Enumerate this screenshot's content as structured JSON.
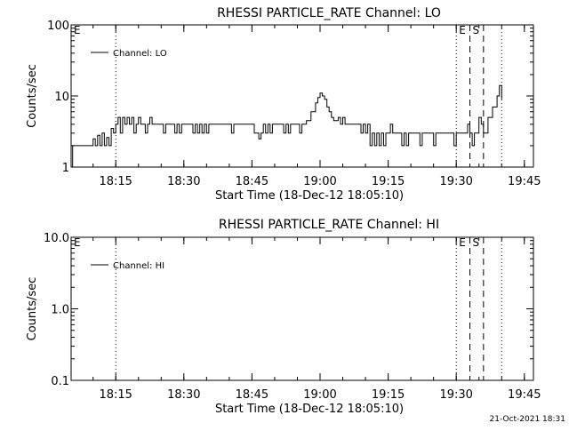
{
  "chart_data": [
    {
      "type": "line",
      "title": "RHESSI PARTICLE_RATE Channel: LO",
      "xlabel": "Start Time (18-Dec-12 18:05:10)",
      "ylabel": "Counts/sec",
      "yscale": "log",
      "ylim": [
        1,
        100
      ],
      "y_ticks": [
        1,
        10,
        100
      ],
      "y_tick_labels": [
        "1",
        "10",
        "100"
      ],
      "x_ticks": [
        "18:15",
        "18:30",
        "18:45",
        "19:00",
        "19:15",
        "19:30",
        "19:45"
      ],
      "legend": {
        "entries": [
          "Channel: LO"
        ],
        "position": "top-left"
      },
      "grid": false,
      "markers": [
        {
          "time": "18:05:10",
          "style": "dotted",
          "label": "E"
        },
        {
          "time": "18:15:00",
          "style": "dotted",
          "label": ""
        },
        {
          "time": "19:30:00",
          "style": "dotted",
          "label": "E"
        },
        {
          "time": "19:33:00",
          "style": "dashed",
          "label": "S"
        },
        {
          "time": "19:36:00",
          "style": "dashed",
          "label": ""
        },
        {
          "time": "19:40:00",
          "style": "dotted",
          "label": ""
        }
      ],
      "series": [
        {
          "name": "Channel: LO",
          "points": [
            [
              "18:05:10",
              1.0
            ],
            [
              "18:05:30",
              2.0
            ],
            [
              "18:07:00",
              2.0
            ],
            [
              "18:09:00",
              2.0
            ],
            [
              "18:10:00",
              2.5
            ],
            [
              "18:10:30",
              2.0
            ],
            [
              "18:11:00",
              2.8
            ],
            [
              "18:11:30",
              2.0
            ],
            [
              "18:12:00",
              3.0
            ],
            [
              "18:12:30",
              2.0
            ],
            [
              "18:13:00",
              2.6
            ],
            [
              "18:13:30",
              2.0
            ],
            [
              "18:14:00",
              3.5
            ],
            [
              "18:14:30",
              3.0
            ],
            [
              "18:15:00",
              4.0
            ],
            [
              "18:15:30",
              5.0
            ],
            [
              "18:16:00",
              3.0
            ],
            [
              "18:16:30",
              5.0
            ],
            [
              "18:17:00",
              4.0
            ],
            [
              "18:17:30",
              5.0
            ],
            [
              "18:18:00",
              4.0
            ],
            [
              "18:18:30",
              5.0
            ],
            [
              "18:19:00",
              3.0
            ],
            [
              "18:19:30",
              4.0
            ],
            [
              "18:20:00",
              5.0
            ],
            [
              "18:20:30",
              4.0
            ],
            [
              "18:21:00",
              4.0
            ],
            [
              "18:21:30",
              3.0
            ],
            [
              "18:22:00",
              4.0
            ],
            [
              "18:22:30",
              5.0
            ],
            [
              "18:23:00",
              4.0
            ],
            [
              "18:24:00",
              4.0
            ],
            [
              "18:25:00",
              4.0
            ],
            [
              "18:25:30",
              3.0
            ],
            [
              "18:26:00",
              4.0
            ],
            [
              "18:27:00",
              4.0
            ],
            [
              "18:28:00",
              3.0
            ],
            [
              "18:28:30",
              4.0
            ],
            [
              "18:29:00",
              3.0
            ],
            [
              "18:29:30",
              4.0
            ],
            [
              "18:30:00",
              4.0
            ],
            [
              "18:31:00",
              4.0
            ],
            [
              "18:32:00",
              3.0
            ],
            [
              "18:32:30",
              4.0
            ],
            [
              "18:33:00",
              3.0
            ],
            [
              "18:33:30",
              4.0
            ],
            [
              "18:34:00",
              3.0
            ],
            [
              "18:34:30",
              4.0
            ],
            [
              "18:35:00",
              3.0
            ],
            [
              "18:35:30",
              4.0
            ],
            [
              "18:36:00",
              4.0
            ],
            [
              "18:37:00",
              4.0
            ],
            [
              "18:38:00",
              4.0
            ],
            [
              "18:39:00",
              4.0
            ],
            [
              "18:40:00",
              4.0
            ],
            [
              "18:40:30",
              3.0
            ],
            [
              "18:41:00",
              4.0
            ],
            [
              "18:42:00",
              4.0
            ],
            [
              "18:43:00",
              4.0
            ],
            [
              "18:44:00",
              4.0
            ],
            [
              "18:45:00",
              4.0
            ],
            [
              "18:45:30",
              3.0
            ],
            [
              "18:46:00",
              3.0
            ],
            [
              "18:46:30",
              2.5
            ],
            [
              "18:47:00",
              3.0
            ],
            [
              "18:47:30",
              4.0
            ],
            [
              "18:48:00",
              3.0
            ],
            [
              "18:48:30",
              4.0
            ],
            [
              "18:49:00",
              3.0
            ],
            [
              "18:49:30",
              4.0
            ],
            [
              "18:50:00",
              4.0
            ],
            [
              "18:51:00",
              4.0
            ],
            [
              "18:52:00",
              3.0
            ],
            [
              "18:52:30",
              4.0
            ],
            [
              "18:53:00",
              3.0
            ],
            [
              "18:53:30",
              4.0
            ],
            [
              "18:54:00",
              4.0
            ],
            [
              "18:55:00",
              4.0
            ],
            [
              "18:55:30",
              3.0
            ],
            [
              "18:56:00",
              4.0
            ],
            [
              "18:57:00",
              4.5
            ],
            [
              "18:58:00",
              6.0
            ],
            [
              "18:59:00",
              8.0
            ],
            [
              "18:59:30",
              9.5
            ],
            [
              "19:00:00",
              11.0
            ],
            [
              "19:00:30",
              10.0
            ],
            [
              "19:01:00",
              9.0
            ],
            [
              "19:01:30",
              7.0
            ],
            [
              "19:02:00",
              6.0
            ],
            [
              "19:02:30",
              5.0
            ],
            [
              "19:03:00",
              4.5
            ],
            [
              "19:04:00",
              5.0
            ],
            [
              "19:04:30",
              4.0
            ],
            [
              "19:05:00",
              5.0
            ],
            [
              "19:05:30",
              4.0
            ],
            [
              "19:06:00",
              4.0
            ],
            [
              "19:07:00",
              4.0
            ],
            [
              "19:08:00",
              4.0
            ],
            [
              "19:09:00",
              3.0
            ],
            [
              "19:09:30",
              4.0
            ],
            [
              "19:10:00",
              3.0
            ],
            [
              "19:10:30",
              4.0
            ],
            [
              "19:11:00",
              2.0
            ],
            [
              "19:11:30",
              3.0
            ],
            [
              "19:12:00",
              2.0
            ],
            [
              "19:12:30",
              3.0
            ],
            [
              "19:13:00",
              2.0
            ],
            [
              "19:13:30",
              3.0
            ],
            [
              "19:14:00",
              2.0
            ],
            [
              "19:14:30",
              3.0
            ],
            [
              "19:15:00",
              3.0
            ],
            [
              "19:15:30",
              4.0
            ],
            [
              "19:16:00",
              3.0
            ],
            [
              "19:17:00",
              3.0
            ],
            [
              "19:18:00",
              2.0
            ],
            [
              "19:18:30",
              3.0
            ],
            [
              "19:19:00",
              2.0
            ],
            [
              "19:19:30",
              3.0
            ],
            [
              "19:20:00",
              3.0
            ],
            [
              "19:21:00",
              3.0
            ],
            [
              "19:22:00",
              2.0
            ],
            [
              "19:22:30",
              3.0
            ],
            [
              "19:23:00",
              3.0
            ],
            [
              "19:24:00",
              3.0
            ],
            [
              "19:25:00",
              2.0
            ],
            [
              "19:25:30",
              3.0
            ],
            [
              "19:26:00",
              3.0
            ],
            [
              "19:27:00",
              3.0
            ],
            [
              "19:28:00",
              3.0
            ],
            [
              "19:29:00",
              3.0
            ],
            [
              "19:29:30",
              2.0
            ],
            [
              "19:30:00",
              3.0
            ],
            [
              "19:31:00",
              3.0
            ],
            [
              "19:32:00",
              3.0
            ],
            [
              "19:32:30",
              4.0
            ],
            [
              "19:33:00",
              3.0
            ],
            [
              "19:33:30",
              2.0
            ],
            [
              "19:34:00",
              3.0
            ],
            [
              "19:34:30",
              3.0
            ],
            [
              "19:35:00",
              5.0
            ],
            [
              "19:35:30",
              4.0
            ],
            [
              "19:36:00",
              3.0
            ],
            [
              "19:37:00",
              5.0
            ],
            [
              "19:38:00",
              7.0
            ],
            [
              "19:39:00",
              10.0
            ],
            [
              "19:39:30",
              14.0
            ],
            [
              "19:40:00",
              9.0
            ]
          ]
        }
      ]
    },
    {
      "type": "line",
      "title": "RHESSI PARTICLE_RATE Channel: HI",
      "xlabel": "Start Time (18-Dec-12 18:05:10)",
      "ylabel": "Counts/sec",
      "yscale": "log",
      "ylim": [
        0.1,
        10
      ],
      "y_ticks": [
        0.1,
        1.0,
        10.0
      ],
      "y_tick_labels": [
        "0.1",
        "1.0",
        "10.0"
      ],
      "x_ticks": [
        "18:15",
        "18:30",
        "18:45",
        "19:00",
        "19:15",
        "19:30",
        "19:45"
      ],
      "legend": {
        "entries": [
          "Channel: HI"
        ],
        "position": "top-left"
      },
      "grid": false,
      "markers": [
        {
          "time": "18:05:10",
          "style": "dotted",
          "label": "E"
        },
        {
          "time": "18:15:00",
          "style": "dotted",
          "label": ""
        },
        {
          "time": "19:30:00",
          "style": "dotted",
          "label": "E"
        },
        {
          "time": "19:33:00",
          "style": "dashed",
          "label": "S"
        },
        {
          "time": "19:36:00",
          "style": "dashed",
          "label": ""
        },
        {
          "time": "19:40:00",
          "style": "dotted",
          "label": ""
        }
      ],
      "series": [
        {
          "name": "Channel: HI",
          "points": []
        }
      ]
    }
  ],
  "footer_timestamp": "21-Oct-2021 18:31"
}
